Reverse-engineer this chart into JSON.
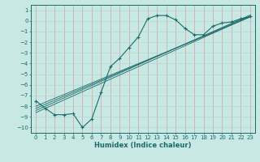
{
  "xlabel": "Humidex (Indice chaleur)",
  "bg_color": "#c8e8e4",
  "grid_color_major": "#d4a0a0",
  "grid_color_minor": "#b8d4d0",
  "line_color": "#1a6b6b",
  "xlim": [
    -0.5,
    23.5
  ],
  "ylim": [
    -10.5,
    1.5
  ],
  "xticks": [
    0,
    1,
    2,
    3,
    4,
    5,
    6,
    7,
    8,
    9,
    10,
    11,
    12,
    13,
    14,
    15,
    16,
    17,
    18,
    19,
    20,
    21,
    22,
    23
  ],
  "yticks": [
    1,
    0,
    -1,
    -2,
    -3,
    -4,
    -5,
    -6,
    -7,
    -8,
    -9,
    -10
  ],
  "data_x": [
    0,
    1,
    2,
    3,
    4,
    5,
    6,
    7,
    8,
    9,
    10,
    11,
    12,
    13,
    14,
    15,
    16,
    17,
    18,
    19,
    20,
    21,
    22,
    23
  ],
  "data_y": [
    -7.5,
    -8.2,
    -8.8,
    -8.8,
    -8.7,
    -10.0,
    -9.2,
    -6.7,
    -4.3,
    -3.5,
    -2.5,
    -1.5,
    0.2,
    0.5,
    0.5,
    0.1,
    -0.7,
    -1.3,
    -1.3,
    -0.5,
    -0.2,
    -0.1,
    0.2,
    0.4
  ],
  "reg_lines": [
    {
      "x": [
        0,
        23
      ],
      "y": [
        -8.6,
        0.4
      ]
    },
    {
      "x": [
        0,
        23
      ],
      "y": [
        -8.4,
        0.55
      ]
    },
    {
      "x": [
        0,
        23
      ],
      "y": [
        -8.2,
        0.45
      ]
    },
    {
      "x": [
        0,
        23
      ],
      "y": [
        -8.0,
        0.35
      ]
    }
  ],
  "xlabel_fontsize": 6,
  "tick_fontsize": 5
}
